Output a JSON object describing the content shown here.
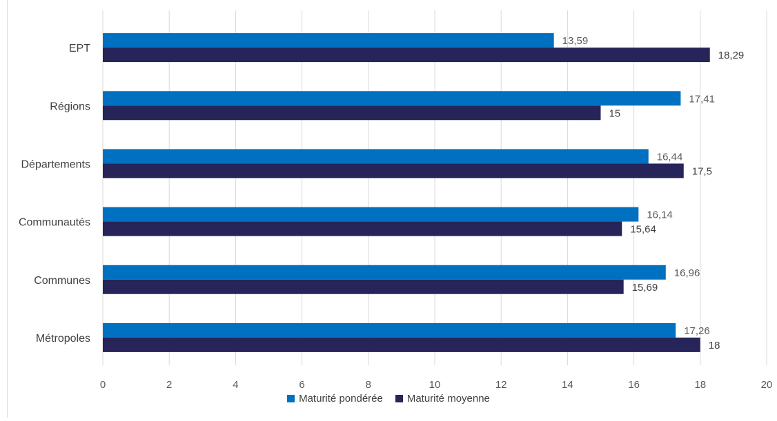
{
  "chart_data": {
    "type": "bar",
    "orientation": "horizontal",
    "categories": [
      "EPT",
      "Régions",
      "Départements",
      "Communautés",
      "Communes",
      "Métropoles"
    ],
    "series": [
      {
        "name": "Maturité pondérée",
        "color": "#0070C0",
        "values": [
          13.59,
          17.41,
          16.44,
          16.14,
          16.96,
          17.26
        ],
        "labels": [
          "13,59",
          "17,41",
          "16,44",
          "16,14",
          "16,96",
          "17,26"
        ]
      },
      {
        "name": "Maturité moyenne",
        "color": "#262458",
        "values": [
          18.29,
          15,
          17.5,
          15.64,
          15.69,
          18
        ],
        "labels": [
          "18,29",
          "15",
          "17,5",
          "15,64",
          "15,69",
          "18"
        ]
      }
    ],
    "xlim": [
      0,
      20
    ],
    "xticks": [
      0,
      2,
      4,
      6,
      8,
      10,
      12,
      14,
      16,
      18,
      20
    ],
    "grid": true,
    "legend_position": "bottom"
  }
}
